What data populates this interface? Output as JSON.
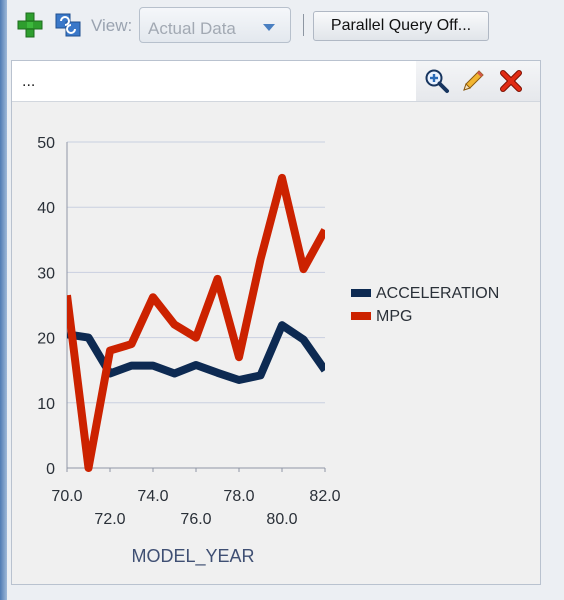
{
  "toolbar": {
    "add_icon": "add-icon",
    "refresh_icon": "refresh-icon",
    "view_label": "View:",
    "view_selected": "Actual Data",
    "parallel_query_label": "Parallel Query Off..."
  },
  "panel": {
    "header_text": "...",
    "icons": [
      "zoom-in-icon",
      "edit-pencil-icon",
      "close-icon"
    ]
  },
  "chart_data": {
    "type": "line",
    "xlabel": "MODEL_YEAR",
    "ylabel": "",
    "xlim": [
      70,
      82
    ],
    "ylim": [
      0,
      50
    ],
    "x_ticks": [
      "70.0",
      "72.0",
      "74.0",
      "76.0",
      "78.0",
      "80.0",
      "82.0"
    ],
    "y_ticks": [
      "0",
      "10",
      "20",
      "30",
      "40",
      "50"
    ],
    "grid": true,
    "legend_position": "right",
    "x": [
      70,
      71,
      72,
      73,
      74,
      75,
      76,
      77,
      78,
      79,
      80,
      81,
      82
    ],
    "series": [
      {
        "name": "ACCELERATION",
        "color": "#0d2a52",
        "values": [
          20.5,
          20.0,
          14.5,
          15.7,
          15.7,
          14.5,
          15.8,
          14.6,
          13.5,
          14.2,
          21.9,
          19.7,
          15.0
        ]
      },
      {
        "name": "MPG",
        "color": "#cc2200",
        "values": [
          26.5,
          0.0,
          18.0,
          19.0,
          26.2,
          22.0,
          20.0,
          29.0,
          17.0,
          32.0,
          44.5,
          30.5,
          36.5
        ]
      }
    ]
  }
}
